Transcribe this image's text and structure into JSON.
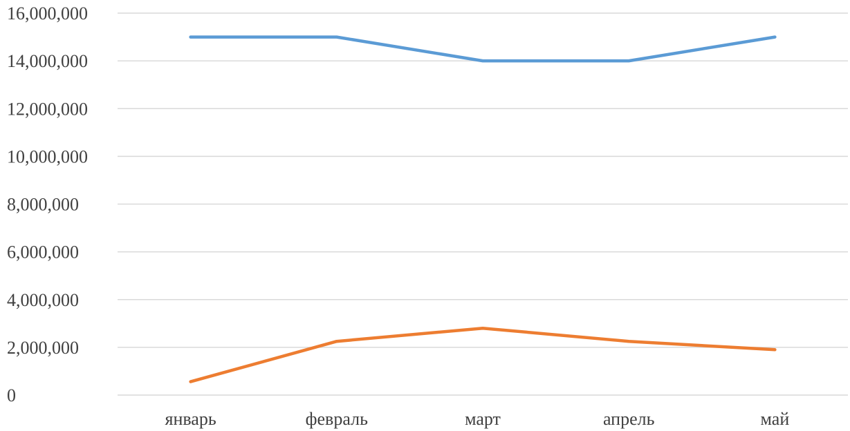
{
  "chart_data": {
    "type": "line",
    "categories": [
      "январь",
      "февраль",
      "март",
      "апрель",
      "май"
    ],
    "ylim": [
      0,
      16000000
    ],
    "ytick_values": [
      0,
      2000000,
      4000000,
      6000000,
      8000000,
      10000000,
      12000000,
      14000000,
      16000000
    ],
    "ytick_labels": [
      "0",
      "2,000,000",
      "4,000,000",
      "6,000,000",
      "8,000,000",
      "10,000,000",
      "12,000,000",
      "14,000,000",
      "16,000,000"
    ],
    "grid": true,
    "series": [
      {
        "color": "#5b9bd5",
        "values": [
          15000000,
          15000000,
          14000000,
          14000000,
          15000000
        ]
      },
      {
        "color": "#ed7d31",
        "values": [
          560000,
          2250000,
          2800000,
          2250000,
          1900000
        ]
      }
    ]
  }
}
